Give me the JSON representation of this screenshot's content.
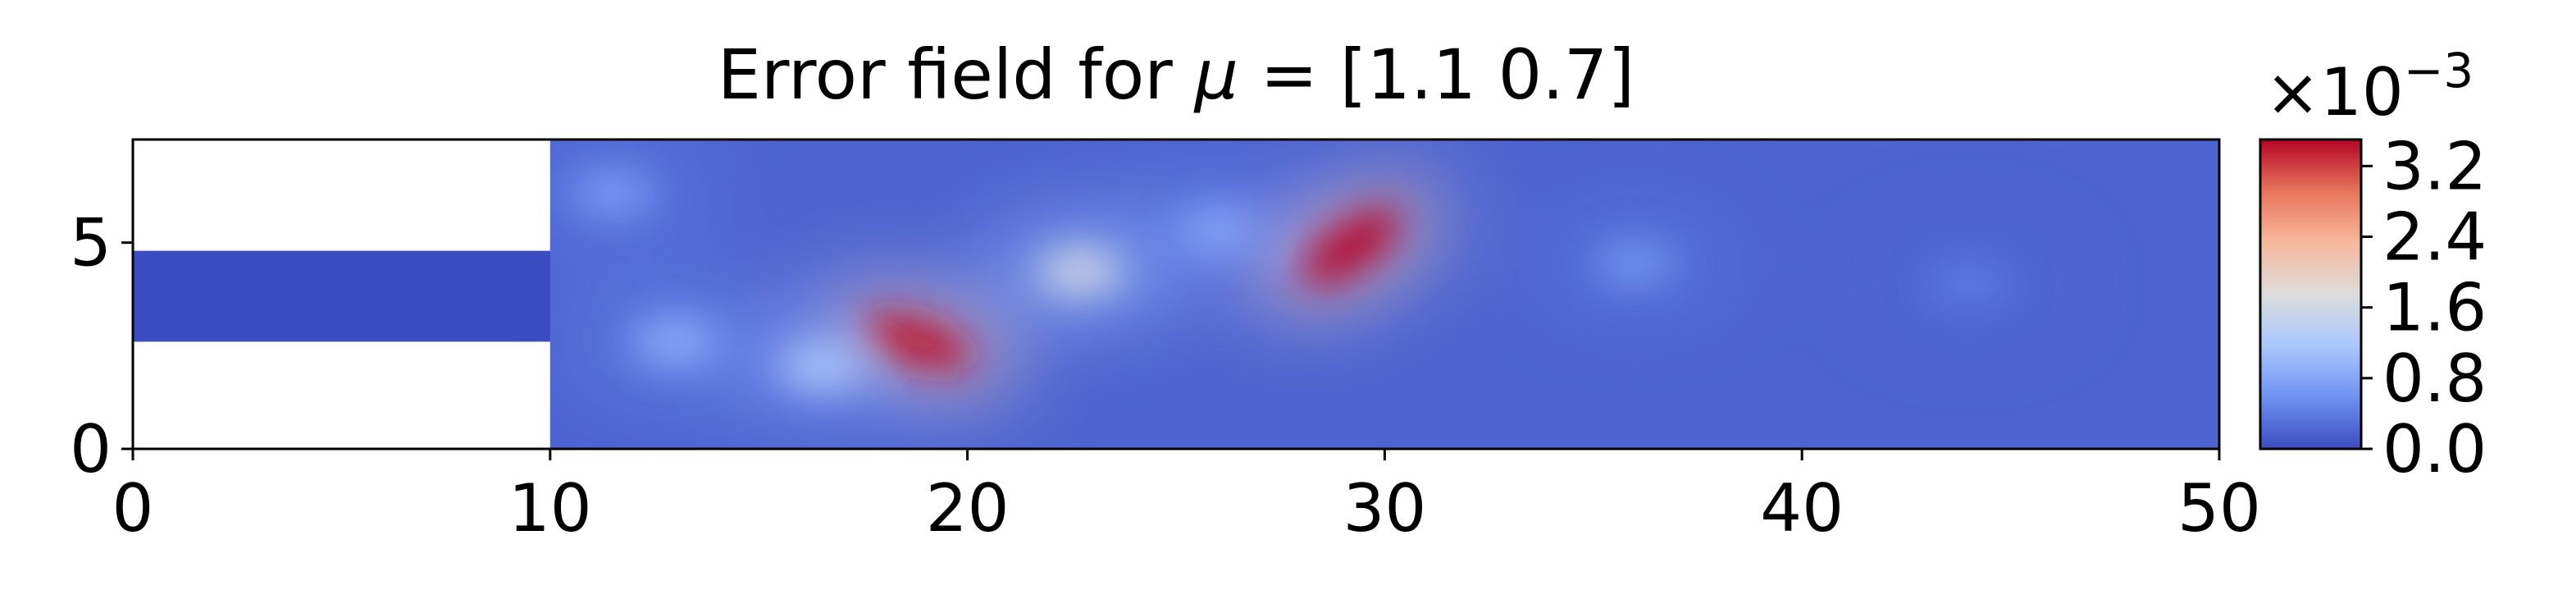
{
  "chart_data": {
    "type": "heatmap",
    "title_prefix": "Error field for",
    "title_symbol": "μ",
    "title_suffix": " = [1.1 0.7]",
    "xlabel": "",
    "ylabel": "",
    "xlim": [
      0,
      50
    ],
    "ylim": [
      0,
      7.5
    ],
    "x_ticks": [
      0,
      10,
      20,
      30,
      40,
      50
    ],
    "x_tick_labels": [
      "0",
      "10",
      "20",
      "30",
      "40",
      "50"
    ],
    "y_ticks": [
      0,
      5
    ],
    "y_tick_labels": [
      "0",
      "5"
    ],
    "colormap": "coolwarm",
    "colormap_stops": [
      "#3b4cc0",
      "#6f92f3",
      "#aac7fd",
      "#dddcdc",
      "#f7b89c",
      "#e7745b",
      "#b40426"
    ],
    "colorbar": {
      "range": [
        0.0,
        3.5
      ],
      "ticks": [
        0.0,
        0.8,
        1.6,
        2.4,
        3.2
      ],
      "tick_labels": [
        "0.0",
        "0.8",
        "1.6",
        "2.4",
        "3.2"
      ],
      "multiplier_base": "×10",
      "multiplier_exponent": "−3"
    },
    "masked_regions": [
      {
        "x": [
          0,
          10
        ],
        "y": [
          0,
          2.6
        ]
      },
      {
        "x": [
          0,
          10
        ],
        "y": [
          4.8,
          7.5
        ]
      }
    ],
    "inlet_channel": {
      "x": [
        0,
        10
      ],
      "y": [
        2.6,
        4.8
      ],
      "value": 0.0
    },
    "background_level": 0.2,
    "error_features": [
      {
        "x": 29.2,
        "y": 4.9,
        "value": 3.5
      },
      {
        "x": 18.8,
        "y": 2.6,
        "value": 3.4
      },
      {
        "x": 22.7,
        "y": 4.3,
        "value": 1.6
      },
      {
        "x": 16.5,
        "y": 2.0,
        "value": 1.2
      },
      {
        "x": 13.0,
        "y": 2.6,
        "value": 0.9
      },
      {
        "x": 26.0,
        "y": 5.3,
        "value": 0.8
      },
      {
        "x": 36.0,
        "y": 4.5,
        "value": 0.6
      },
      {
        "x": 44.0,
        "y": 4.0,
        "value": 0.4
      },
      {
        "x": 11.5,
        "y": 6.2,
        "value": 0.7
      }
    ]
  }
}
